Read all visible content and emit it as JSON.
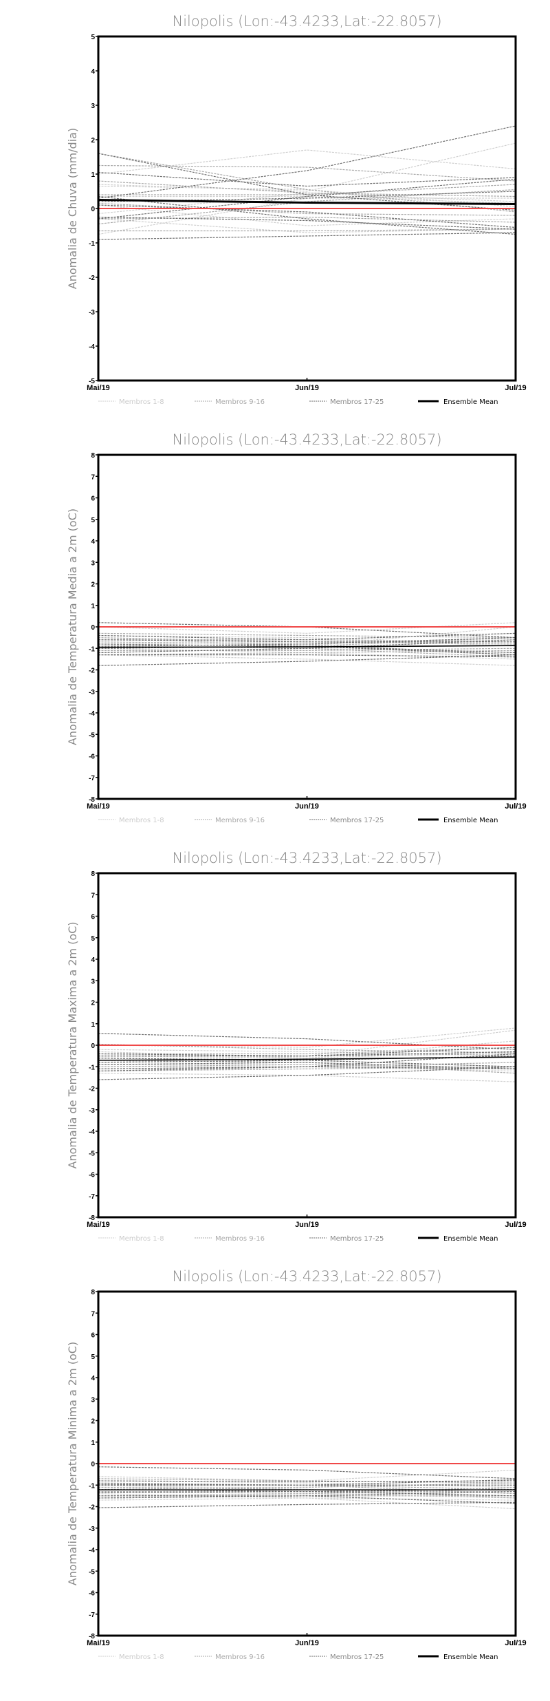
{
  "colors": {
    "members_1_8": "#cfcfcf",
    "members_9_16": "#a8a8a8",
    "members_17_25": "#6e6e6e",
    "ensemble_mean": "#000000",
    "zero_line": "#f04848"
  },
  "legend": [
    "Membros 1-8",
    "Membros 9-16",
    "Membros 17-25",
    "Ensemble Mean"
  ],
  "chart_data": [
    {
      "type": "line",
      "title": "Nilopolis (Lon:-43.4233,Lat:-22.8057)",
      "ylabel": "Anomalia de Chuva (mm/dia)",
      "xlabel": "",
      "categories": [
        "Mai/19",
        "Jun/19",
        "Jul/19"
      ],
      "ylim": [
        -5,
        5
      ],
      "yticks": [
        "-5",
        "-4",
        "-3",
        "-2",
        "-1",
        "0",
        "1",
        "2",
        "3",
        "4",
        "5"
      ],
      "ensemble_mean": [
        0.25,
        0.17,
        0.13
      ],
      "members": [
        [
          1.0,
          1.7,
          1.15
        ],
        [
          0.7,
          0.5,
          1.9
        ],
        [
          -0.75,
          0.3,
          0.3
        ],
        [
          0.1,
          -0.5,
          -0.3
        ],
        [
          -0.15,
          0.45,
          0.2
        ],
        [
          0.65,
          0.55,
          0.05
        ],
        [
          -0.3,
          -0.7,
          -0.6
        ],
        [
          0.35,
          0.35,
          0.15
        ],
        [
          1.6,
          0.55,
          -0.1
        ],
        [
          1.25,
          1.2,
          0.8
        ],
        [
          0.4,
          0.4,
          0.7
        ],
        [
          -0.3,
          -0.25,
          -0.4
        ],
        [
          -0.65,
          -0.65,
          -0.6
        ],
        [
          0.8,
          0.45,
          0.35
        ],
        [
          0.15,
          -0.15,
          -0.2
        ],
        [
          -0.45,
          0.2,
          0.55
        ],
        [
          0.3,
          1.1,
          2.4
        ],
        [
          1.05,
          0.65,
          0.9
        ],
        [
          1.6,
          0.4,
          -0.05
        ],
        [
          -0.9,
          -0.8,
          -0.7
        ],
        [
          0.35,
          -0.3,
          -0.75
        ],
        [
          -0.25,
          -0.35,
          -0.6
        ],
        [
          0.2,
          0.3,
          0.5
        ],
        [
          -0.3,
          0.35,
          0.85
        ],
        [
          0.1,
          -0.1,
          -0.55
        ]
      ]
    },
    {
      "type": "line",
      "title": "Nilopolis (Lon:-43.4233,Lat:-22.8057)",
      "ylabel": "Anomalia de Temperatura Media a 2m (oC)",
      "xlabel": "",
      "categories": [
        "Mai/19",
        "Jun/19",
        "Jul/19"
      ],
      "ylim": [
        -8,
        8
      ],
      "yticks": [
        "-8",
        "-7",
        "-6",
        "-5",
        "-4",
        "-3",
        "-2",
        "-1",
        "0",
        "1",
        "2",
        "3",
        "4",
        "5",
        "6",
        "7",
        "8"
      ],
      "ensemble_mean": [
        -0.95,
        -0.93,
        -0.87
      ],
      "members": [
        [
          0.0,
          -0.3,
          0.2
        ],
        [
          -0.6,
          -0.6,
          -0.3
        ],
        [
          -1.3,
          -1.5,
          -1.8
        ],
        [
          -0.5,
          -0.9,
          0.0
        ],
        [
          -1.0,
          -1.2,
          -1.5
        ],
        [
          -0.8,
          -0.7,
          -0.6
        ],
        [
          -1.2,
          -1.0,
          -1.2
        ],
        [
          -0.4,
          -0.5,
          -0.9
        ],
        [
          -0.7,
          -0.8,
          -1.3
        ],
        [
          -1.0,
          -0.9,
          -0.5
        ],
        [
          -0.3,
          -0.4,
          -0.5
        ],
        [
          -1.3,
          -1.2,
          -1.1
        ],
        [
          -0.9,
          -1.0,
          -1.4
        ],
        [
          -0.6,
          -0.6,
          -0.7
        ],
        [
          -1.1,
          -1.1,
          -1.0
        ],
        [
          -0.5,
          -0.7,
          -0.8
        ],
        [
          0.2,
          0.0,
          -0.5
        ],
        [
          -1.8,
          -1.6,
          -1.3
        ],
        [
          -0.9,
          -0.8,
          -0.5
        ],
        [
          -1.3,
          -1.3,
          -1.4
        ],
        [
          -0.6,
          -0.7,
          -0.7
        ],
        [
          -1.0,
          -0.9,
          -1.3
        ],
        [
          -0.8,
          -0.9,
          -1.2
        ],
        [
          -0.4,
          -0.6,
          -0.3
        ],
        [
          -1.2,
          -1.0,
          -0.6
        ]
      ]
    },
    {
      "type": "line",
      "title": "Nilopolis (Lon:-43.4233,Lat:-22.8057)",
      "ylabel": "Anomalia de Temperatura Maxima a 2m (oC)",
      "xlabel": "",
      "categories": [
        "Mai/19",
        "Jun/19",
        "Jul/19"
      ],
      "ylim": [
        -8,
        8
      ],
      "yticks": [
        "-8",
        "-7",
        "-6",
        "-5",
        "-4",
        "-3",
        "-2",
        "-1",
        "0",
        "1",
        "2",
        "3",
        "4",
        "5",
        "6",
        "7",
        "8"
      ],
      "ensemble_mean": [
        -0.7,
        -0.65,
        -0.55
      ],
      "members": [
        [
          0.0,
          -0.1,
          0.8
        ],
        [
          -0.3,
          -0.6,
          0.2
        ],
        [
          -1.3,
          -1.4,
          -1.7
        ],
        [
          -0.8,
          -0.5,
          0.7
        ],
        [
          -1.0,
          -1.0,
          -1.2
        ],
        [
          -0.5,
          -0.6,
          -0.3
        ],
        [
          -0.9,
          -0.9,
          -1.1
        ],
        [
          -0.2,
          -0.3,
          -0.5
        ],
        [
          -0.6,
          -0.7,
          -1.0
        ],
        [
          -1.1,
          -1.0,
          -0.8
        ],
        [
          -0.4,
          -0.4,
          -0.1
        ],
        [
          -1.2,
          -1.1,
          -1.0
        ],
        [
          -0.7,
          -0.8,
          -1.3
        ],
        [
          -0.5,
          -0.5,
          -0.4
        ],
        [
          -1.0,
          -0.9,
          -1.1
        ],
        [
          0.05,
          -0.2,
          -0.35
        ],
        [
          0.55,
          0.3,
          -0.2
        ],
        [
          -1.6,
          -1.4,
          -1.0
        ],
        [
          -0.5,
          -0.5,
          -0.1
        ],
        [
          -1.1,
          -1.0,
          -1.1
        ],
        [
          -0.6,
          -0.7,
          -0.5
        ],
        [
          -0.8,
          -0.7,
          -1.0
        ],
        [
          -0.9,
          -0.8,
          -1.1
        ],
        [
          -0.4,
          -0.5,
          -0.3
        ],
        [
          -1.2,
          -1.0,
          -0.4
        ]
      ]
    },
    {
      "type": "line",
      "title": "Nilopolis (Lon:-43.4233,Lat:-22.8057)",
      "ylabel": "Anomalia de Temperatura Minima a 2m (oC)",
      "xlabel": "",
      "categories": [
        "Mai/19",
        "Jun/19",
        "Jul/19"
      ],
      "ylim": [
        -8,
        8
      ],
      "yticks": [
        "-8",
        "-7",
        "-6",
        "-5",
        "-4",
        "-3",
        "-2",
        "-1",
        "0",
        "1",
        "2",
        "3",
        "4",
        "5",
        "6",
        "7",
        "8"
      ],
      "ensemble_mean": [
        -1.22,
        -1.22,
        -1.22
      ],
      "members": [
        [
          -0.6,
          -0.8,
          -0.3
        ],
        [
          -1.3,
          -1.4,
          -1.6
        ],
        [
          -1.7,
          -1.6,
          -2.1
        ],
        [
          -1.0,
          -1.2,
          -1.5
        ],
        [
          -0.8,
          -0.9,
          -1.1
        ],
        [
          -1.5,
          -1.4,
          -1.3
        ],
        [
          -1.1,
          -1.1,
          -0.9
        ],
        [
          -1.4,
          -1.6,
          -1.7
        ],
        [
          -0.9,
          -1.0,
          -1.2
        ],
        [
          -1.2,
          -1.1,
          -0.9
        ],
        [
          -1.6,
          -1.5,
          -1.5
        ],
        [
          -1.0,
          -1.0,
          -1.4
        ],
        [
          -0.7,
          -0.8,
          -0.9
        ],
        [
          -1.3,
          -1.3,
          -1.3
        ],
        [
          -1.5,
          -1.4,
          -1.1
        ],
        [
          -1.1,
          -1.2,
          -1.6
        ],
        [
          -0.15,
          -0.3,
          -0.7
        ],
        [
          -2.05,
          -1.9,
          -1.8
        ],
        [
          -1.0,
          -1.0,
          -0.75
        ],
        [
          -1.35,
          -1.3,
          -1.5
        ],
        [
          -0.8,
          -0.85,
          -0.8
        ],
        [
          -1.6,
          -1.5,
          -1.85
        ],
        [
          -1.2,
          -1.3,
          -1.2
        ],
        [
          -0.95,
          -1.0,
          -1.0
        ],
        [
          -1.5,
          -1.5,
          -1.3
        ]
      ]
    }
  ]
}
